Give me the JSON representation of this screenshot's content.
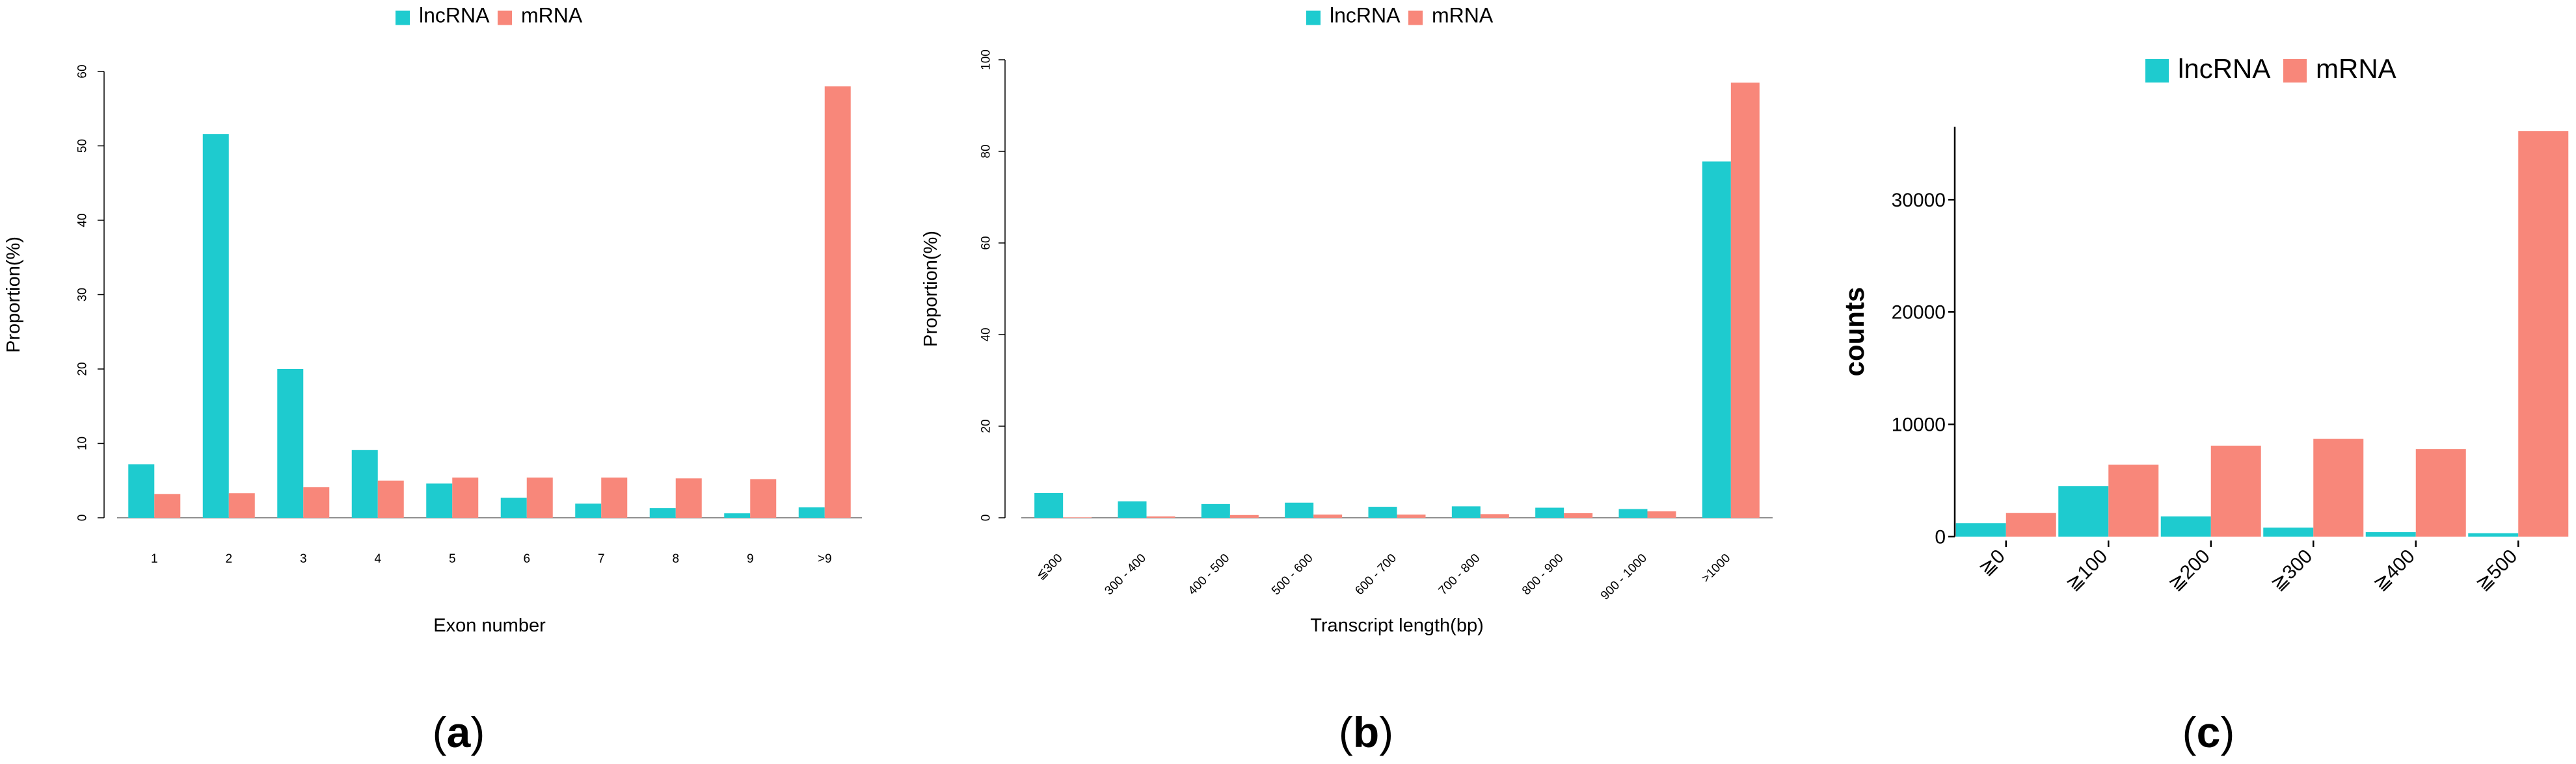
{
  "colors": {
    "lncRNA": "#1ECBCF",
    "mRNA": "#F8877A",
    "axis": "#000000"
  },
  "captions": [
    {
      "open": "(",
      "letter": "a",
      "close": ")"
    },
    {
      "open": "(",
      "letter": "b",
      "close": ")"
    },
    {
      "open": "(",
      "letter": "c",
      "close": ")"
    }
  ],
  "chart_data": [
    {
      "type": "bar",
      "title": "",
      "xlabel": "Exon number",
      "ylabel": "Proportion(%)",
      "ylim": [
        0,
        60
      ],
      "yticks": [
        0,
        10,
        20,
        30,
        40,
        50,
        60
      ],
      "legend": [
        "lncRNA",
        "mRNA"
      ],
      "legend_position": "top-center",
      "categories": [
        "1",
        "2",
        "3",
        "4",
        "5",
        "6",
        "7",
        "8",
        "9",
        ">9"
      ],
      "series": [
        {
          "name": "lncRNA",
          "values": [
            7.2,
            51.6,
            20.0,
            9.1,
            4.6,
            2.7,
            1.9,
            1.3,
            0.6,
            1.4
          ]
        },
        {
          "name": "mRNA",
          "values": [
            3.2,
            3.3,
            4.1,
            5.0,
            5.4,
            5.4,
            5.4,
            5.3,
            5.2,
            58.0
          ]
        }
      ]
    },
    {
      "type": "bar",
      "title": "",
      "xlabel": "Transcript length(bp)",
      "ylabel": "Proportion(%)",
      "ylim": [
        0,
        100
      ],
      "yticks": [
        0,
        20,
        40,
        60,
        80,
        100
      ],
      "legend": [
        "lncRNA",
        "mRNA"
      ],
      "legend_position": "top-center",
      "categories": [
        "≦300",
        "300 - 400",
        "400 - 500",
        "500 - 600",
        "600 - 700",
        "700 - 800",
        "800 - 900",
        "900 - 1000",
        ">1000"
      ],
      "series": [
        {
          "name": "lncRNA",
          "values": [
            5.4,
            3.6,
            3.0,
            3.3,
            2.4,
            2.5,
            2.2,
            1.9,
            77.8
          ]
        },
        {
          "name": "mRNA",
          "values": [
            0.1,
            0.3,
            0.6,
            0.7,
            0.7,
            0.8,
            1.0,
            1.4,
            95.0
          ]
        }
      ]
    },
    {
      "type": "bar",
      "title": "",
      "xlabel": "",
      "ylabel": "counts",
      "ylim": [
        0,
        36500
      ],
      "yticks": [
        0,
        10000,
        20000,
        30000
      ],
      "legend": [
        "lncRNA",
        "mRNA"
      ],
      "legend_position": "top-center",
      "categories": [
        "≧0",
        "≧100",
        "≧200",
        "≧300",
        "≧400",
        "≧500"
      ],
      "series": [
        {
          "name": "lncRNA",
          "values": [
            1200,
            4500,
            1800,
            800,
            400,
            300
          ]
        },
        {
          "name": "mRNA",
          "values": [
            2100,
            6400,
            8100,
            8700,
            7800,
            36100
          ]
        }
      ]
    }
  ]
}
